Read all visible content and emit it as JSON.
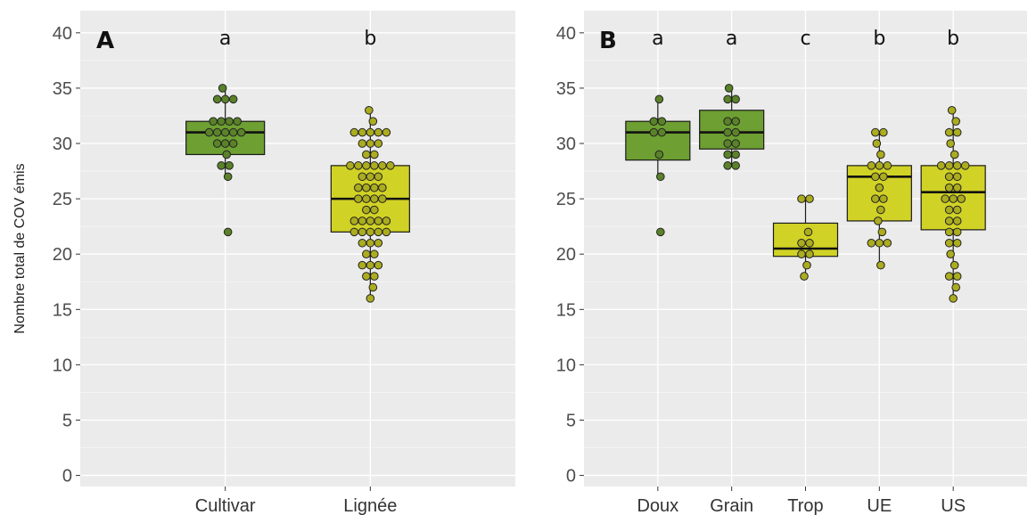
{
  "chart_data": [
    {
      "type": "boxplot",
      "panel_label": "A",
      "ylabel": "Nombre total de COV émis",
      "ylim": [
        -1,
        42
      ],
      "yticks": [
        0,
        5,
        10,
        15,
        20,
        25,
        30,
        35,
        40
      ],
      "categories": [
        "Cultivar",
        "Lignée"
      ],
      "group_letters": [
        "a",
        "b"
      ],
      "colors": [
        "#6e9f32",
        "#d1d226"
      ],
      "boxes": [
        {
          "name": "Cultivar",
          "q1": 29,
          "median": 31,
          "q3": 32,
          "whisker_low": 27,
          "whisker_high": 35
        },
        {
          "name": "Lignée",
          "q1": 22,
          "median": 25,
          "q3": 28,
          "whisker_low": 16,
          "whisker_high": 33
        }
      ],
      "points": [
        [
          35,
          34,
          34,
          34,
          32,
          32,
          32,
          32,
          31,
          31,
          31,
          31,
          31,
          30,
          30,
          30,
          29,
          28,
          28,
          27,
          22
        ],
        [
          33,
          32,
          31,
          31,
          31,
          31,
          31,
          30,
          30,
          30,
          29,
          29,
          28,
          28,
          28,
          28,
          28,
          28,
          27,
          27,
          27,
          26,
          26,
          26,
          26,
          25,
          25,
          25,
          25,
          24,
          24,
          23,
          23,
          23,
          23,
          23,
          22,
          22,
          22,
          22,
          22,
          21,
          21,
          21,
          20,
          20,
          19,
          19,
          19,
          18,
          18,
          17,
          16
        ]
      ]
    },
    {
      "type": "boxplot",
      "panel_label": "B",
      "ylabel": "",
      "ylim": [
        -1,
        42
      ],
      "yticks": [
        0,
        5,
        10,
        15,
        20,
        25,
        30,
        35,
        40
      ],
      "categories": [
        "Doux",
        "Grain",
        "Trop",
        "UE",
        "US"
      ],
      "group_letters": [
        "a",
        "a",
        "c",
        "b",
        "b"
      ],
      "colors": [
        "#6e9f32",
        "#6e9f32",
        "#d1d226",
        "#d1d226",
        "#d1d226"
      ],
      "boxes": [
        {
          "name": "Doux",
          "q1": 28.5,
          "median": 31,
          "q3": 32,
          "whisker_low": 27,
          "whisker_high": 34
        },
        {
          "name": "Grain",
          "q1": 29.5,
          "median": 31,
          "q3": 33,
          "whisker_low": 28,
          "whisker_high": 35
        },
        {
          "name": "Trop",
          "q1": 19.8,
          "median": 20.5,
          "q3": 22.8,
          "whisker_low": 18,
          "whisker_high": 25
        },
        {
          "name": "UE",
          "q1": 23,
          "median": 27,
          "q3": 28,
          "whisker_low": 19,
          "whisker_high": 31
        },
        {
          "name": "US",
          "q1": 22.2,
          "median": 25.6,
          "q3": 28,
          "whisker_low": 16,
          "whisker_high": 33
        }
      ],
      "points": [
        [
          34,
          32,
          32,
          31,
          31,
          29,
          27,
          22
        ],
        [
          35,
          34,
          34,
          32,
          32,
          31,
          31,
          30,
          30,
          29,
          29,
          28,
          28
        ],
        [
          25,
          25,
          22,
          21,
          21,
          20,
          20,
          19,
          18
        ],
        [
          31,
          31,
          30,
          29,
          28,
          28,
          28,
          27,
          27,
          26,
          25,
          25,
          24,
          23,
          22,
          21,
          21,
          21,
          19
        ],
        [
          33,
          32,
          31,
          31,
          30,
          29,
          28,
          28,
          28,
          28,
          27,
          27,
          26,
          26,
          25,
          25,
          25,
          24,
          24,
          23,
          23,
          22,
          22,
          21,
          21,
          20,
          19,
          18,
          18,
          17,
          16
        ]
      ]
    }
  ]
}
